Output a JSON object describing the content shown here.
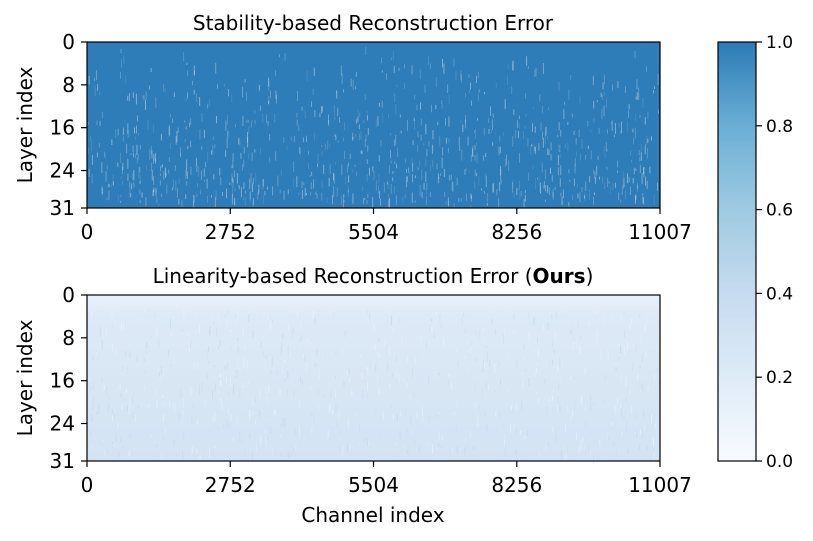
{
  "chart_data": [
    {
      "type": "heatmap",
      "title": "Stability-based Reconstruction Error",
      "ylabel": "Layer index",
      "xlabel": "",
      "x_ticks": [
        "0",
        "2752",
        "5504",
        "8256",
        "11007"
      ],
      "y_ticks": [
        "0",
        "8",
        "16",
        "24",
        "31"
      ],
      "xlim": [
        0,
        11007
      ],
      "ylim": [
        0,
        31
      ],
      "base_value": 0.96,
      "pattern": "near-uniform high values with sparse lighter streaks, denser near bottom layers"
    },
    {
      "type": "heatmap",
      "title_parts": [
        {
          "text": "Linearity-based Reconstruction Error (",
          "bold": false
        },
        {
          "text": "Ours",
          "bold": true
        },
        {
          "text": ")",
          "bold": false
        }
      ],
      "ylabel": "Layer index",
      "xlabel": "Channel index",
      "x_ticks": [
        "0",
        "2752",
        "5504",
        "8256",
        "11007"
      ],
      "y_ticks": [
        "0",
        "8",
        "16",
        "24",
        "31"
      ],
      "xlim": [
        0,
        11007
      ],
      "ylim": [
        0,
        31
      ],
      "base_value": 0.14,
      "pattern": "low values, slightly lower in the first layers"
    }
  ],
  "colorbar": {
    "min": 0.0,
    "max": 1.0,
    "ticks": [
      "0.0",
      "0.2",
      "0.4",
      "0.6",
      "0.8",
      "1.0"
    ],
    "colormap": "Blues",
    "color_low": "#f7fbff",
    "color_high": "#2c7bb6"
  }
}
